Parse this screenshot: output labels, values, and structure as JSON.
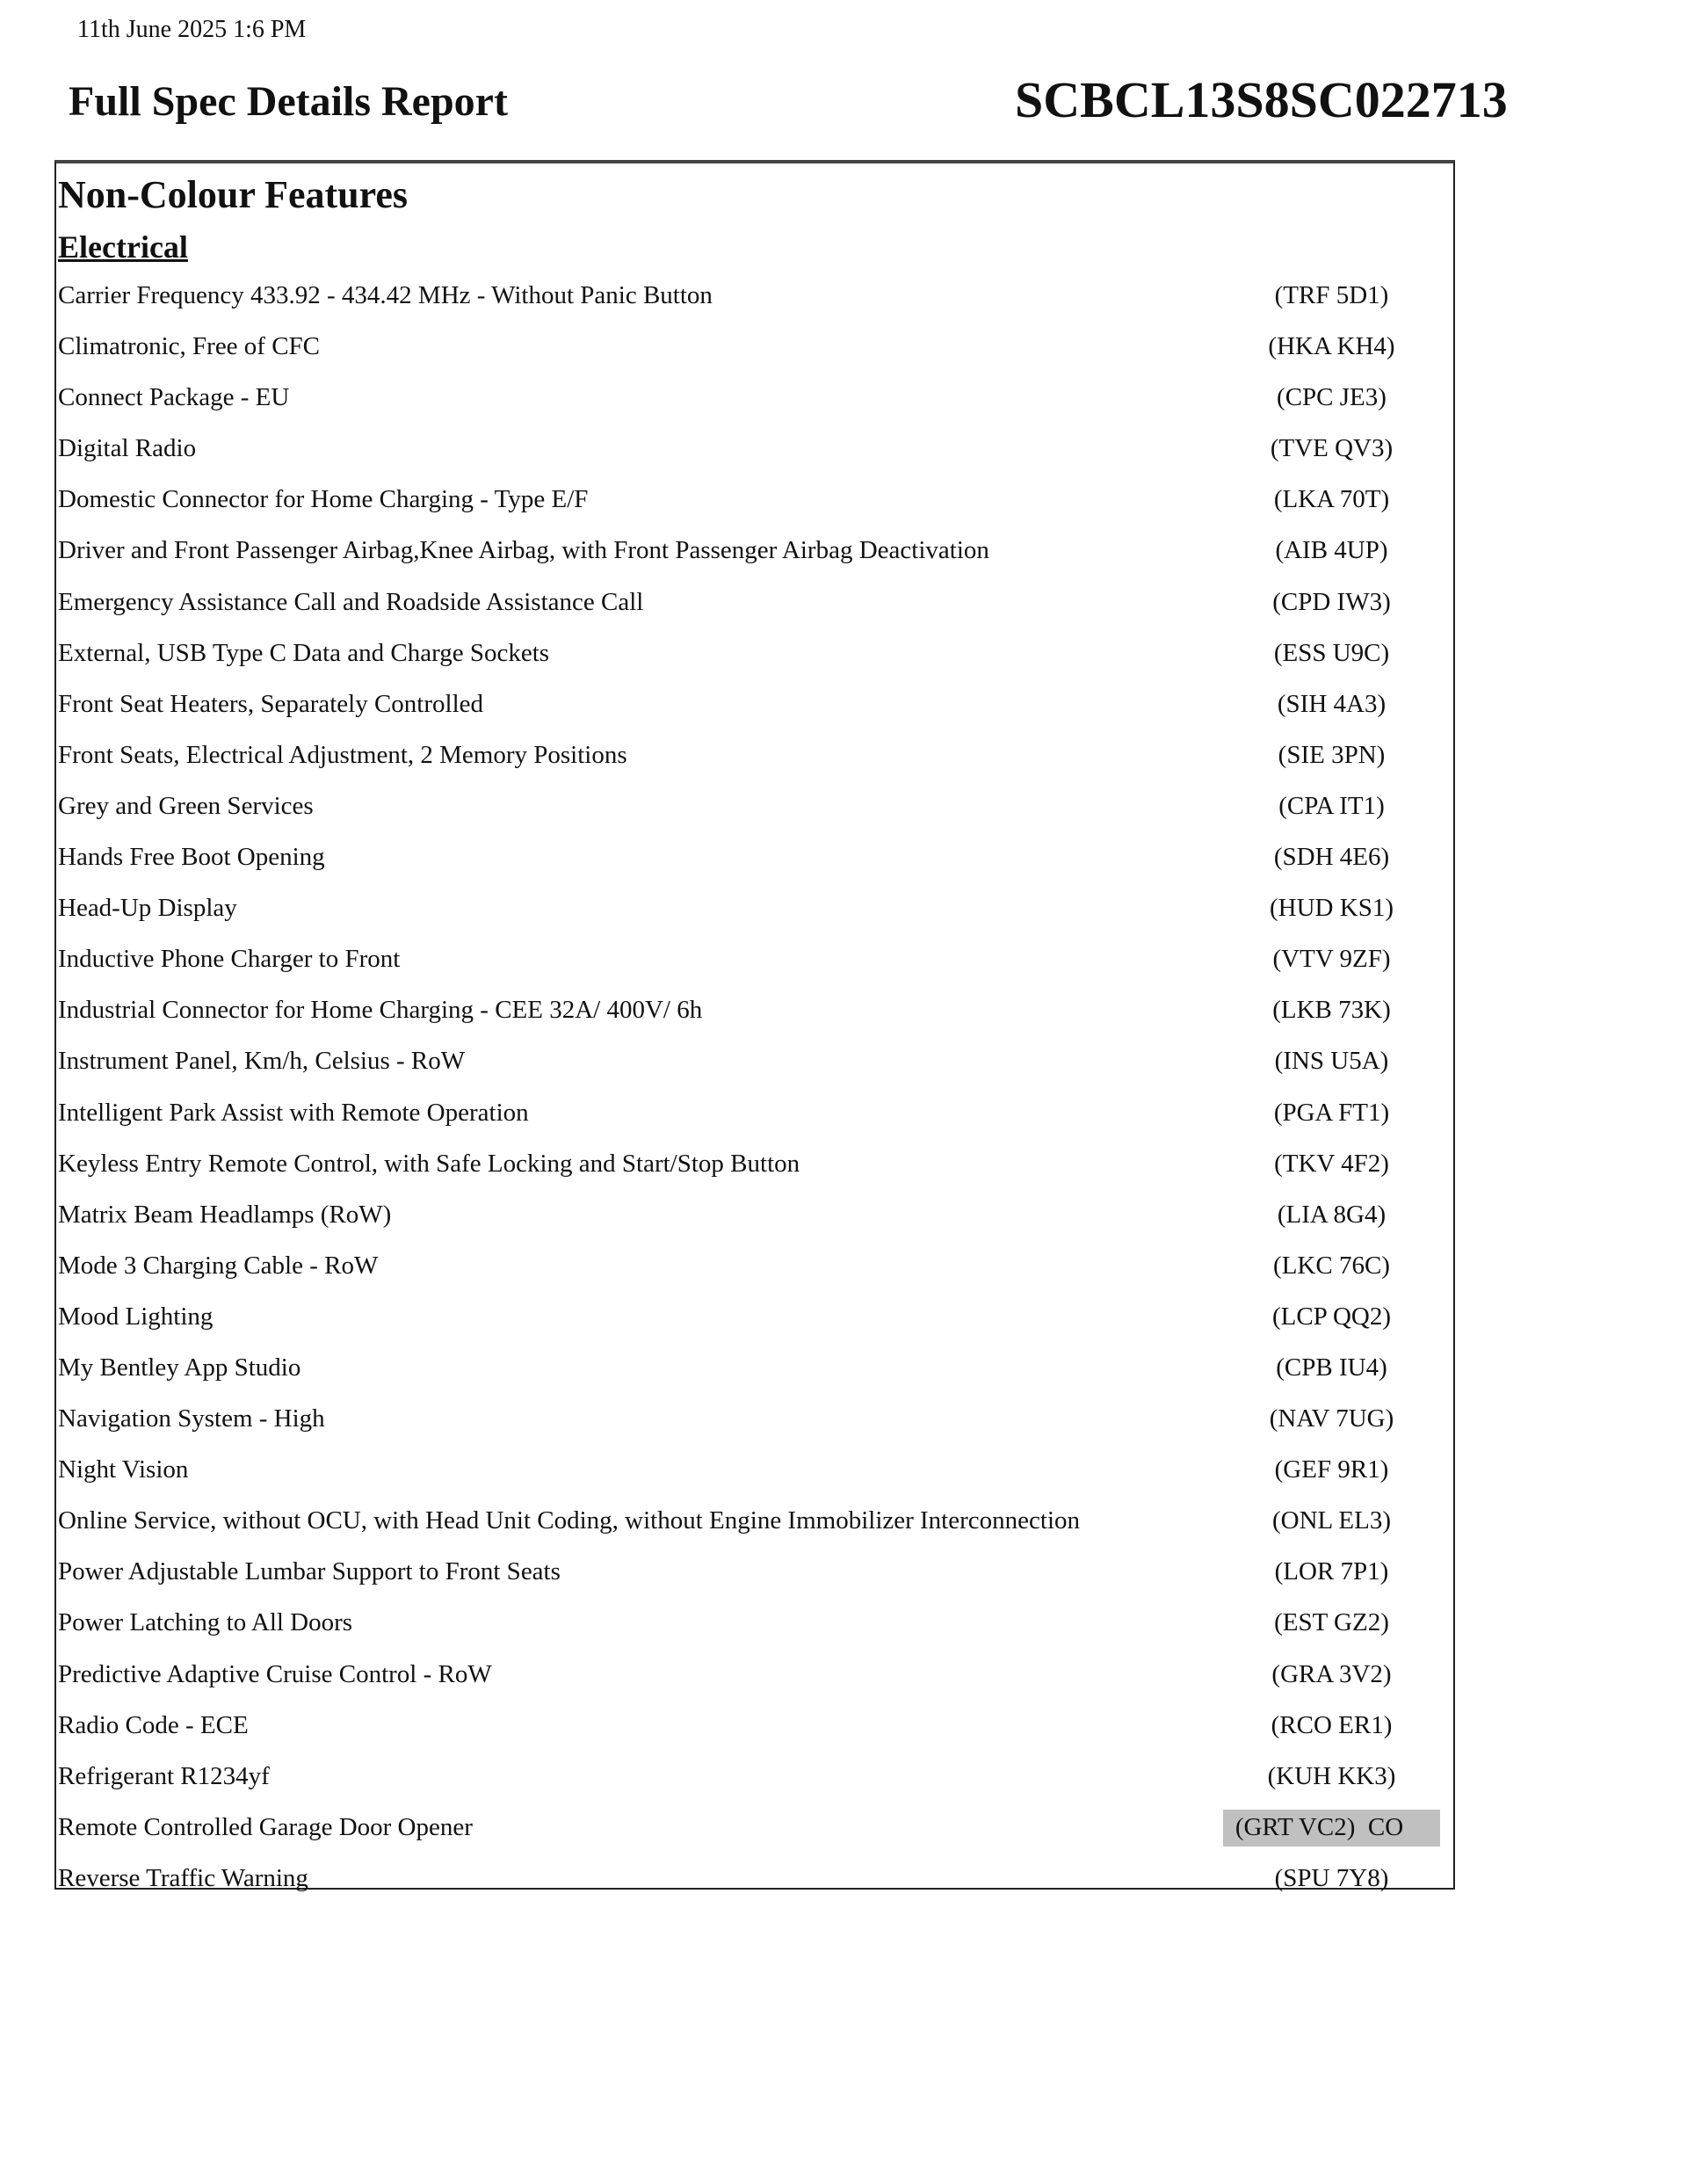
{
  "header": {
    "timestamp": "11th June 2025  1:6 PM",
    "title": "Full Spec Details Report",
    "vin": "SCBCL13S8SC022713"
  },
  "section": {
    "title": "Non-Colour Features",
    "group": "Electrical",
    "highlight_color": "#c0c0c0",
    "items": [
      {
        "label": "Carrier Frequency 433.92 - 434.42 MHz - Without Panic Button",
        "code": "(TRF 5D1)"
      },
      {
        "label": "Climatronic, Free of CFC",
        "code": "(HKA KH4)"
      },
      {
        "label": "Connect Package - EU",
        "code": "(CPC JE3)"
      },
      {
        "label": "Digital Radio",
        "code": "(TVE QV3)"
      },
      {
        "label": "Domestic Connector for Home Charging - Type E/F",
        "code": "(LKA 70T)"
      },
      {
        "label": "Driver and Front Passenger Airbag,Knee Airbag, with Front Passenger Airbag Deactivation",
        "code": "(AIB 4UP)"
      },
      {
        "label": "Emergency Assistance Call and Roadside Assistance Call",
        "code": "(CPD IW3)"
      },
      {
        "label": "External, USB Type C Data and Charge Sockets",
        "code": "(ESS U9C)"
      },
      {
        "label": "Front Seat Heaters, Separately Controlled",
        "code": "(SIH 4A3)"
      },
      {
        "label": "Front Seats, Electrical Adjustment, 2 Memory Positions",
        "code": "(SIE 3PN)"
      },
      {
        "label": "Grey and Green Services",
        "code": "(CPA IT1)"
      },
      {
        "label": "Hands Free Boot Opening",
        "code": "(SDH 4E6)"
      },
      {
        "label": "Head-Up Display",
        "code": "(HUD KS1)"
      },
      {
        "label": "Inductive Phone Charger to Front",
        "code": "(VTV 9ZF)"
      },
      {
        "label": "Industrial Connector for Home Charging - CEE 32A/ 400V/ 6h",
        "code": "(LKB 73K)"
      },
      {
        "label": "Instrument Panel, Km/h, Celsius - RoW",
        "code": "(INS U5A)"
      },
      {
        "label": "Intelligent Park Assist with Remote Operation",
        "code": "(PGA FT1)"
      },
      {
        "label": "Keyless Entry Remote Control, with Safe Locking and Start/Stop Button",
        "code": "(TKV 4F2)"
      },
      {
        "label": "Matrix Beam Headlamps (RoW)",
        "code": "(LIA 8G4)"
      },
      {
        "label": "Mode 3 Charging Cable - RoW",
        "code": "(LKC 76C)"
      },
      {
        "label": "Mood Lighting",
        "code": "(LCP QQ2)"
      },
      {
        "label": "My Bentley App Studio",
        "code": "(CPB IU4)"
      },
      {
        "label": "Navigation System - High",
        "code": "(NAV 7UG)"
      },
      {
        "label": "Night Vision",
        "code": "(GEF 9R1)"
      },
      {
        "label": "Online Service, without OCU, with Head Unit Coding, without Engine Immobilizer Interconnection",
        "code": "(ONL EL3)"
      },
      {
        "label": "Power Adjustable Lumbar Support to Front Seats",
        "code": "(LOR 7P1)"
      },
      {
        "label": "Power Latching to All Doors",
        "code": "(EST GZ2)"
      },
      {
        "label": "Predictive Adaptive Cruise Control - RoW",
        "code": "(GRA 3V2)"
      },
      {
        "label": "Radio Code - ECE",
        "code": "(RCO ER1)"
      },
      {
        "label": "Refrigerant R1234yf",
        "code": "(KUH KK3)"
      },
      {
        "label": "Remote Controlled Garage Door Opener",
        "code": "(GRT VC2)  CO",
        "highlighted": true
      },
      {
        "label": "Reverse Traffic Warning",
        "code": "(SPU 7Y8)"
      }
    ]
  }
}
